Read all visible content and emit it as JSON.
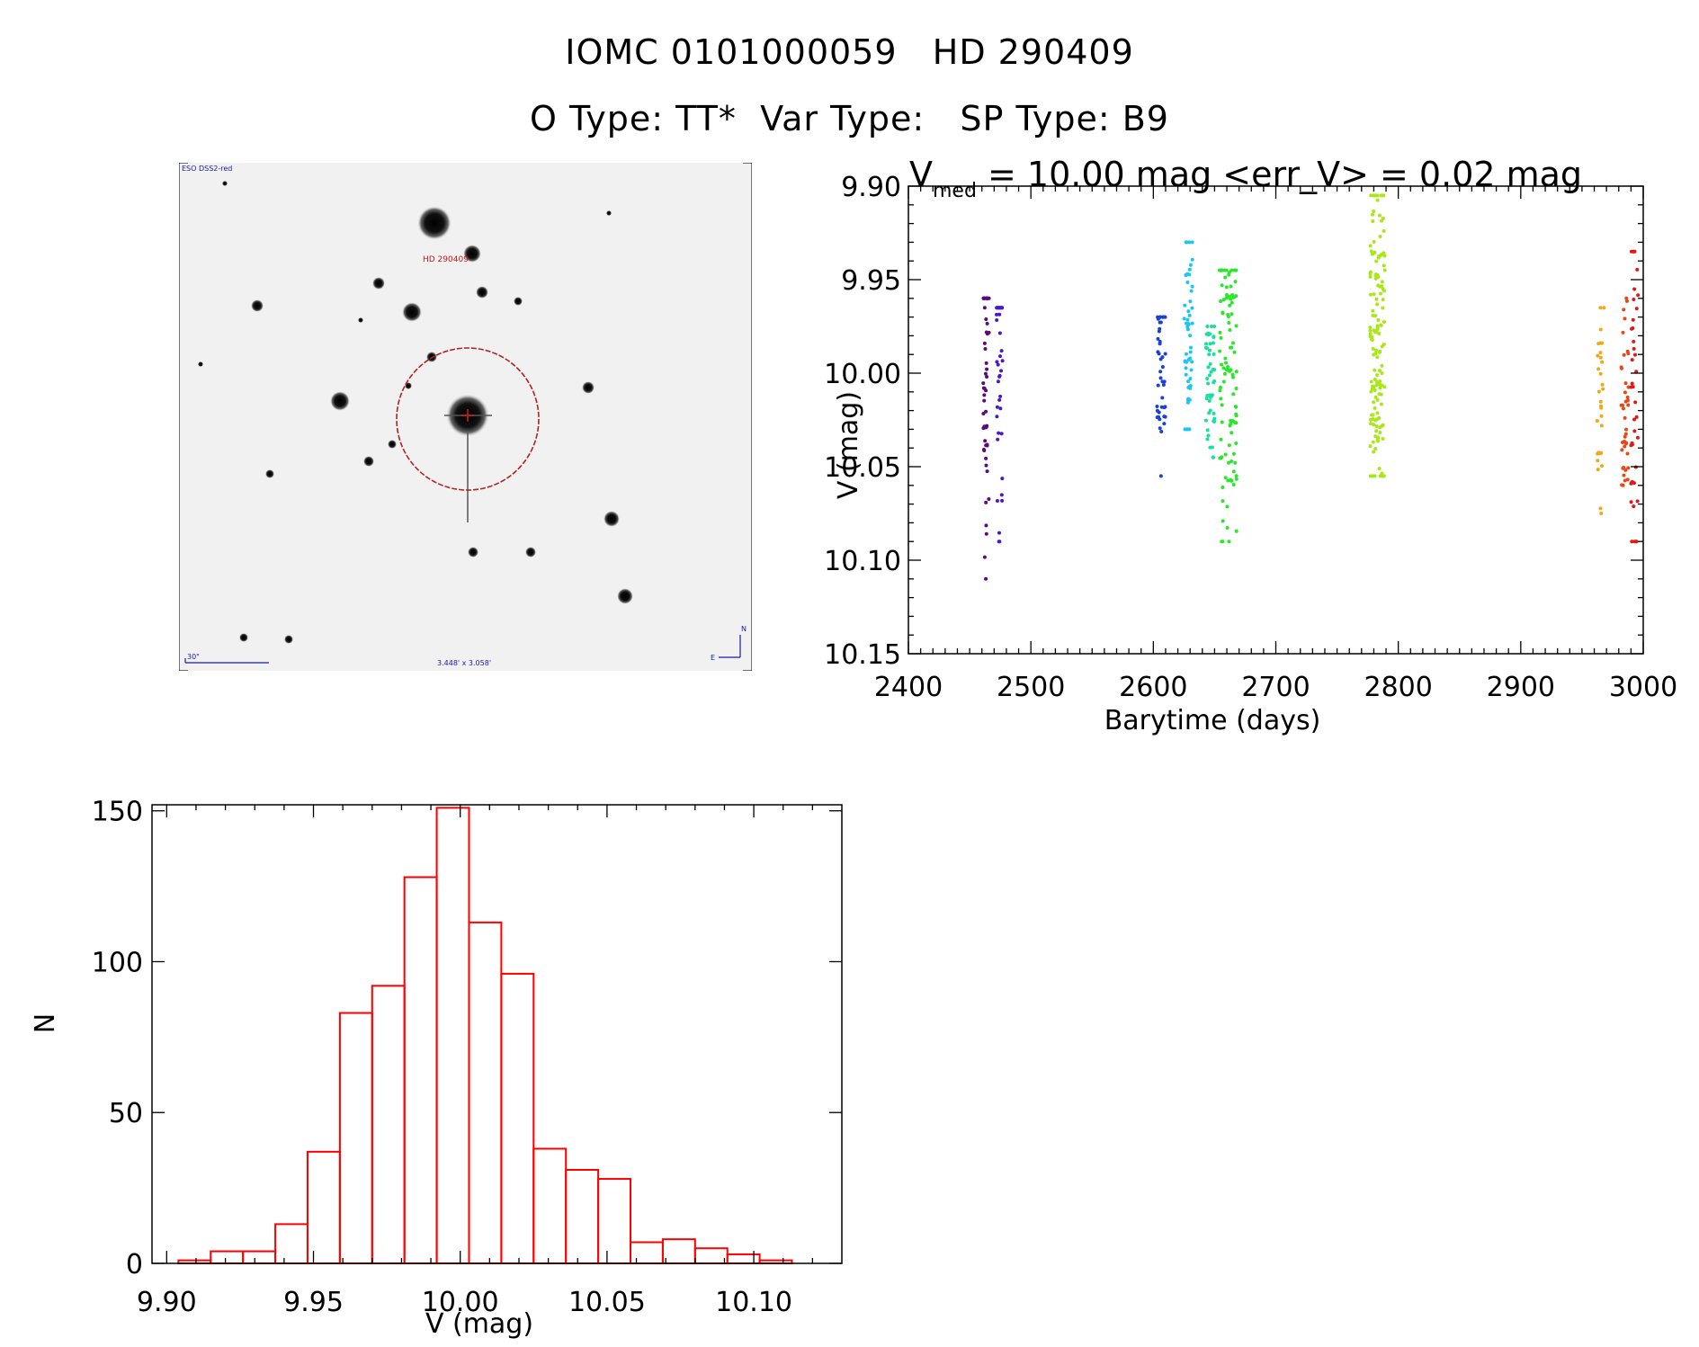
{
  "header": {
    "title": "IOMC 0101000059   HD 290409",
    "subtitle": "O Type: TT*  Var Type:   SP Type: B9"
  },
  "finder": {
    "survey_label": "ESO DSS2-red",
    "target_label": "HD 290409",
    "scale_label": "30\"",
    "fov_label": "3.448' x 3.058'",
    "north_label": "N",
    "east_label": "E",
    "colors": {
      "circle": "#b22222",
      "labels_blue": "#1a1aa0",
      "label_red": "#c0181b"
    }
  },
  "chart_data": [
    {
      "type": "scatter",
      "title_parts": {
        "v": "V",
        "sub": "med",
        "rest": " = 10.00 mag <err_V> = 0.02 mag"
      },
      "xlabel": "Barytime (days)",
      "ylabel": "V (mag)",
      "xlim": [
        2400,
        3000
      ],
      "ylim": [
        10.15,
        9.9
      ],
      "y_inverted": true,
      "xticks": [
        "2400",
        "2500",
        "2600",
        "2700",
        "2800",
        "2900",
        "3000"
      ],
      "yticks": [
        "9.90",
        "9.95",
        "10.00",
        "10.05",
        "10.10",
        "10.15"
      ],
      "median_v": 10.0,
      "mean_err_v": 0.02,
      "series": [
        {
          "color": "#5a0a7a",
          "x_range": [
            2461,
            2466
          ],
          "y_range": [
            9.96,
            10.11
          ],
          "y_center": 10.0,
          "n": 55
        },
        {
          "color": "#4a18c8",
          "x_range": [
            2472,
            2477
          ],
          "y_range": [
            9.965,
            10.09
          ],
          "y_center": 10.01,
          "n": 40
        },
        {
          "color": "#1a40d8",
          "x_range": [
            2603,
            2610
          ],
          "y_range": [
            9.97,
            10.055
          ],
          "y_center": 10.0,
          "n": 45
        },
        {
          "color": "#18c8f0",
          "x_range": [
            2625,
            2632
          ],
          "y_range": [
            9.93,
            10.03
          ],
          "y_center": 9.985,
          "n": 55
        },
        {
          "color": "#18e0a0",
          "x_range": [
            2643,
            2650
          ],
          "y_range": [
            9.975,
            10.045
          ],
          "y_center": 10.005,
          "n": 50
        },
        {
          "color": "#28e828",
          "x_range": [
            2654,
            2668
          ],
          "y_range": [
            9.945,
            10.09
          ],
          "y_center": 10.01,
          "n": 110
        },
        {
          "color": "#a8e818",
          "x_range": [
            2777,
            2789
          ],
          "y_range": [
            9.905,
            10.055
          ],
          "y_center": 9.985,
          "n": 150
        },
        {
          "color": "#f0a818",
          "x_range": [
            2962,
            2968
          ],
          "y_range": [
            9.965,
            10.075
          ],
          "y_center": 10.01,
          "n": 30
        },
        {
          "color": "#e84818",
          "x_range": [
            2982,
            2988
          ],
          "y_range": [
            9.96,
            10.06
          ],
          "y_center": 10.02,
          "n": 40
        },
        {
          "color": "#e01818",
          "x_range": [
            2990,
            2996
          ],
          "y_range": [
            9.935,
            10.09
          ],
          "y_center": 10.01,
          "n": 40
        }
      ]
    },
    {
      "type": "bar",
      "subtype": "histogram",
      "xlabel": "V (mag)",
      "ylabel": "N",
      "xlim": [
        9.895,
        10.13
      ],
      "ylim": [
        0,
        152
      ],
      "xticks": [
        "9.90",
        "9.95",
        "10.00",
        "10.05",
        "10.10"
      ],
      "yticks": [
        "0",
        "50",
        "100",
        "150"
      ],
      "bin_width": 0.011,
      "bin_start": 9.904,
      "values": [
        1,
        4,
        4,
        13,
        37,
        83,
        92,
        128,
        151,
        113,
        96,
        38,
        31,
        28,
        7,
        8,
        5,
        3,
        1
      ],
      "color": "#ff0000"
    }
  ]
}
